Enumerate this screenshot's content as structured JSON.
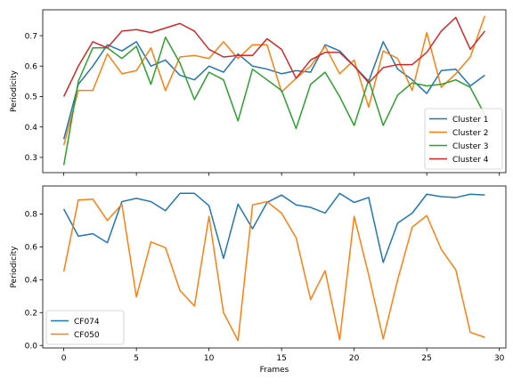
{
  "chart_data": [
    {
      "type": "line",
      "x": [
        0,
        1,
        2,
        3,
        4,
        5,
        6,
        7,
        8,
        9,
        10,
        11,
        12,
        13,
        14,
        15,
        16,
        17,
        18,
        19,
        20,
        21,
        22,
        23,
        24,
        25,
        26,
        27,
        28,
        29
      ],
      "series": [
        {
          "name": "Cluster 1",
          "color": "#1f77b4",
          "values": [
            0.36,
            0.54,
            0.6,
            0.67,
            0.65,
            0.68,
            0.6,
            0.62,
            0.57,
            0.555,
            0.6,
            0.58,
            0.64,
            0.6,
            0.59,
            0.575,
            0.585,
            0.58,
            0.67,
            0.65,
            0.6,
            0.55,
            0.68,
            0.59,
            0.555,
            0.51,
            0.585,
            0.59,
            0.535,
            0.57
          ]
        },
        {
          "name": "Cluster 2",
          "color": "#ff7f0e",
          "values": [
            0.34,
            0.52,
            0.52,
            0.64,
            0.575,
            0.585,
            0.66,
            0.52,
            0.63,
            0.635,
            0.625,
            0.68,
            0.625,
            0.67,
            0.67,
            0.515,
            0.56,
            0.6,
            0.665,
            0.575,
            0.62,
            0.465,
            0.65,
            0.625,
            0.52,
            0.71,
            0.53,
            0.575,
            0.63,
            0.765
          ]
        },
        {
          "name": "Cluster 3",
          "color": "#2ca02c",
          "values": [
            0.275,
            0.55,
            0.66,
            0.66,
            0.625,
            0.665,
            0.54,
            0.695,
            0.61,
            0.49,
            0.58,
            0.555,
            0.42,
            0.59,
            0.555,
            0.52,
            0.395,
            0.54,
            0.58,
            0.5,
            0.405,
            0.555,
            0.405,
            0.505,
            0.545,
            0.535,
            0.54,
            0.555,
            0.53,
            0.44
          ]
        },
        {
          "name": "Cluster 4",
          "color": "#d62728",
          "values": [
            0.5,
            0.6,
            0.68,
            0.66,
            0.715,
            0.72,
            0.71,
            0.725,
            0.74,
            0.715,
            0.655,
            0.63,
            0.635,
            0.635,
            0.69,
            0.655,
            0.56,
            0.62,
            0.645,
            0.645,
            0.6,
            0.545,
            0.595,
            0.605,
            0.605,
            0.645,
            0.715,
            0.76,
            0.655,
            0.715
          ]
        }
      ],
      "xlabel": "",
      "ylabel": "Periodicity",
      "xlim": [
        -1.45,
        30.45
      ],
      "ylim": [
        0.25,
        0.785
      ],
      "yticks": [
        0.3,
        0.4,
        0.5,
        0.6,
        0.7
      ],
      "legend": "lower-right",
      "grid": false
    },
    {
      "type": "line",
      "x": [
        0,
        1,
        2,
        3,
        4,
        5,
        6,
        7,
        8,
        9,
        10,
        11,
        12,
        13,
        14,
        15,
        16,
        17,
        18,
        19,
        20,
        21,
        22,
        23,
        24,
        25,
        26,
        27,
        28,
        29
      ],
      "series": [
        {
          "name": "CF074",
          "color": "#1f77b4",
          "values": [
            0.83,
            0.665,
            0.68,
            0.625,
            0.875,
            0.895,
            0.875,
            0.82,
            0.925,
            0.925,
            0.85,
            0.53,
            0.86,
            0.71,
            0.87,
            0.915,
            0.855,
            0.84,
            0.805,
            0.925,
            0.87,
            0.9,
            0.505,
            0.745,
            0.805,
            0.92,
            0.905,
            0.9,
            0.92,
            0.915
          ]
        },
        {
          "name": "CF050",
          "color": "#ff7f0e",
          "values": [
            0.45,
            0.885,
            0.89,
            0.76,
            0.86,
            0.295,
            0.63,
            0.595,
            0.335,
            0.24,
            0.785,
            0.2,
            0.03,
            0.855,
            0.875,
            0.805,
            0.655,
            0.28,
            0.455,
            0.035,
            0.785,
            0.43,
            0.04,
            0.4,
            0.72,
            0.79,
            0.585,
            0.46,
            0.08,
            0.05
          ]
        }
      ],
      "xlabel": "Frames",
      "ylabel": "Periodicity",
      "xlim": [
        -1.45,
        30.45
      ],
      "ylim": [
        -0.015,
        0.97
      ],
      "yticks": [
        0.0,
        0.2,
        0.4,
        0.6,
        0.8
      ],
      "xticks": [
        0,
        5,
        10,
        15,
        20,
        25,
        30
      ],
      "legend": "lower-left",
      "grid": false
    }
  ]
}
